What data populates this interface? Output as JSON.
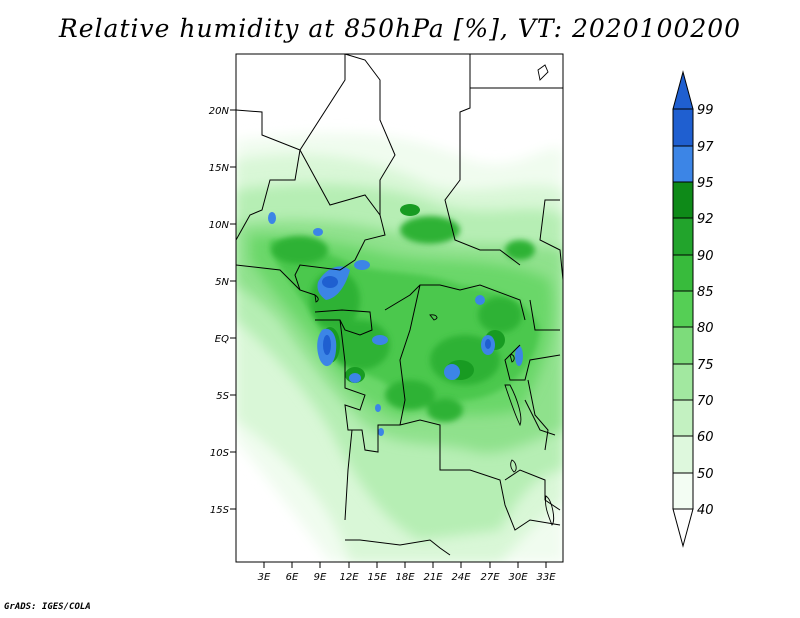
{
  "title": "Relative humidity at 850hPa [%], VT: 2020100200",
  "credit": "GrADS: IGES/COLA",
  "map": {
    "lat_labels": [
      "20N",
      "15N",
      "10N",
      "5N",
      "EQ",
      "5S",
      "10S",
      "15S"
    ],
    "lon_labels": [
      "3E",
      "6E",
      "9E",
      "12E",
      "15E",
      "18E",
      "21E",
      "24E",
      "27E",
      "30E",
      "33E"
    ]
  },
  "colorbar": {
    "levels": [
      "99",
      "97",
      "95",
      "92",
      "90",
      "85",
      "80",
      "75",
      "70",
      "60",
      "50",
      "40"
    ],
    "colors": [
      "#1f5fd0",
      "#3c85e6",
      "#4aa0ee",
      "#0e8a18",
      "#22a42c",
      "#38bb3c",
      "#55cf55",
      "#7ddc7b",
      "#a2e8a0",
      "#c3f1c1",
      "#def8dd",
      "#f3fdf3",
      "#ffffff"
    ]
  }
}
